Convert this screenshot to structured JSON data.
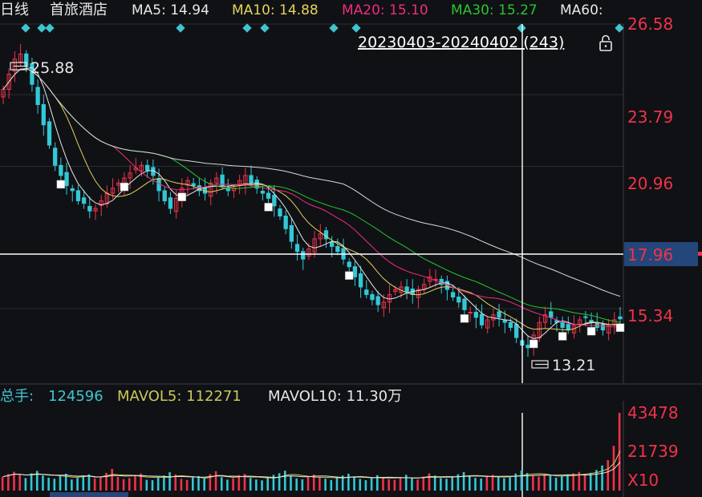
{
  "header": {
    "period": "日线",
    "stock_name": "首旅酒店",
    "ma": [
      {
        "label": "MA5: 14.94",
        "color": "#e8e8e8"
      },
      {
        "label": "MA10: 14.88",
        "color": "#e3d35a"
      },
      {
        "label": "MA20: 15.10",
        "color": "#ee2d7f"
      },
      {
        "label": "MA30: 15.27",
        "color": "#27c62d"
      },
      {
        "label": "MA60:",
        "color": "#e8e8e8"
      }
    ]
  },
  "range_label": "20230403-20240402 (243)",
  "icons": {
    "lock": "lock-icon",
    "marker": "diamond-marker-icon",
    "flag": "price-flag-icon"
  },
  "price_axis": {
    "ticks": [
      "26.58",
      "23.79",
      "20.96",
      "15.34"
    ],
    "crosshair_value": "17.96"
  },
  "annotations": {
    "high": "25.88",
    "low": "13.21"
  },
  "volume": {
    "label": "总手:",
    "value": "124596",
    "mavol5": "MAVOL5: 112271",
    "mavol10": "MAVOL10: 11.30万",
    "axis_ticks": [
      "43478",
      "21739"
    ],
    "unit": "X10"
  },
  "colors": {
    "up": "#f0334a",
    "down": "#33c8d6",
    "axis_text": "#f0334a",
    "crosshair": "#ffffff",
    "grid": "#2a2d33",
    "cyan_label": "#3fc4d0",
    "yellow_label": "#c9c95a"
  },
  "chart_data": {
    "type": "candlestick",
    "ylim": [
      12.4,
      26.58
    ],
    "price_ticks": [
      26.58,
      23.79,
      20.96,
      15.34
    ],
    "highest": 25.88,
    "lowest": 13.21,
    "crosshair_price": 17.96,
    "close": [
      24.0,
      24.6,
      25.2,
      25.4,
      24.9,
      24.2,
      23.4,
      22.6,
      21.8,
      21.0,
      20.6,
      20.2,
      20.0,
      19.6,
      19.5,
      19.2,
      19.3,
      19.6,
      19.9,
      20.1,
      20.3,
      20.5,
      20.7,
      20.9,
      21.0,
      20.8,
      20.6,
      20.0,
      19.6,
      19.3,
      19.7,
      20.1,
      20.4,
      20.2,
      20.0,
      19.9,
      20.3,
      20.5,
      20.2,
      20.0,
      20.1,
      20.4,
      20.6,
      20.3,
      20.1,
      19.9,
      19.7,
      19.4,
      19.0,
      18.5,
      18.0,
      17.6,
      17.3,
      17.7,
      18.1,
      18.3,
      18.1,
      17.8,
      17.6,
      17.3,
      17.0,
      16.6,
      16.2,
      15.9,
      15.7,
      15.5,
      15.6,
      15.9,
      16.1,
      16.2,
      16.0,
      15.9,
      16.1,
      16.3,
      16.6,
      16.5,
      16.3,
      16.1,
      15.8,
      15.6,
      15.3,
      15.2,
      15.0,
      14.7,
      14.9,
      15.1,
      15.0,
      14.8,
      14.6,
      14.2,
      13.9,
      13.8,
      14.3,
      14.8,
      15.1,
      15.0,
      14.8,
      14.6,
      14.5,
      14.7,
      14.9,
      15.0,
      14.8,
      14.6,
      14.5,
      14.7,
      14.9,
      14.94
    ],
    "volume": [
      78,
      92,
      105,
      88,
      70,
      96,
      110,
      84,
      72,
      66,
      80,
      94,
      62,
      71,
      85,
      90,
      68,
      74,
      99,
      121,
      76,
      64,
      70,
      88,
      95,
      60,
      58,
      72,
      84,
      102,
      90,
      66,
      59,
      73,
      81,
      67,
      92,
      108,
      75,
      61,
      69,
      86,
      93,
      70,
      62,
      57,
      74,
      88,
      97,
      111,
      80,
      68,
      63,
      77,
      90,
      72,
      66,
      59,
      71,
      84,
      94,
      79,
      65,
      58,
      70,
      86,
      73,
      64,
      60,
      75,
      88,
      69,
      62,
      78,
      96,
      84,
      70,
      66,
      74,
      91,
      103,
      82,
      71,
      67,
      79,
      88,
      76,
      69,
      74,
      95,
      112,
      98,
      86,
      78,
      90,
      84,
      72,
      80,
      88,
      96,
      104,
      92,
      99,
      115,
      140,
      170,
      250,
      434
    ]
  }
}
